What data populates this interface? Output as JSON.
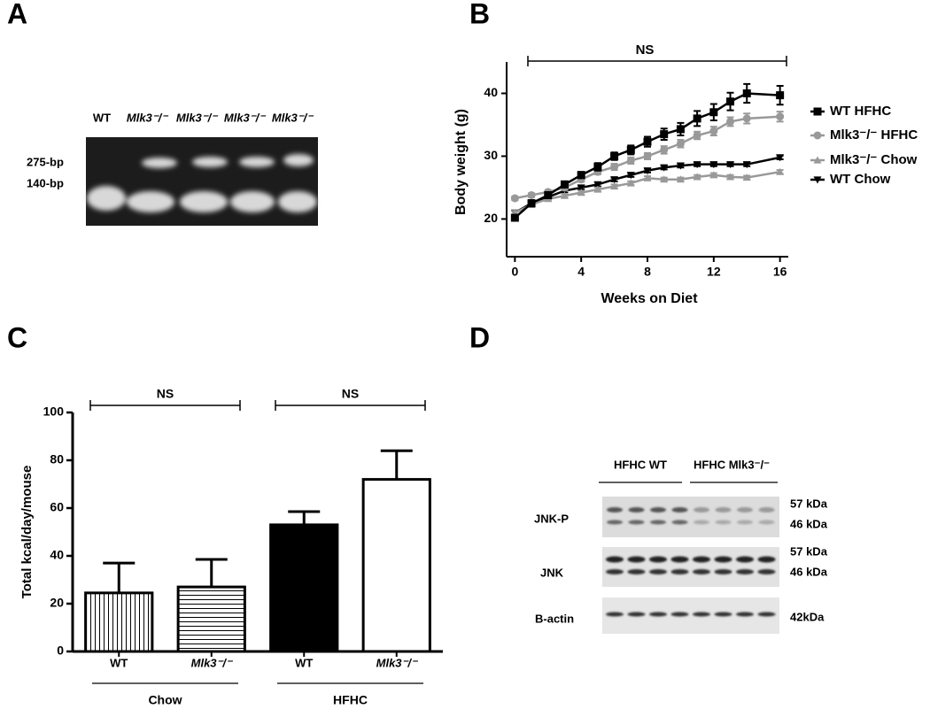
{
  "figure": {
    "panel_labels": [
      "A",
      "B",
      "C",
      "D"
    ],
    "gel": {
      "lanes": [
        "WT",
        "Mlk3⁻/⁻",
        "Mlk3⁻/⁻",
        "Mlk3⁻/⁻",
        "Mlk3⁻/⁻"
      ],
      "markers": [
        "275-bp",
        "140-bp"
      ]
    },
    "blot": {
      "groups": [
        "HFHC WT",
        "HFHC Mlk3⁻/⁻"
      ],
      "rows": [
        "JNK-P",
        "JNK",
        "B-actin"
      ],
      "sizes": [
        "57 kDa",
        "46 kDa",
        "57 kDa",
        "46 kDa",
        "42kDa"
      ]
    }
  },
  "chart_data": [
    {
      "type": "line",
      "xlabel": "Weeks on Diet",
      "ylabel": "Body weight  (g)",
      "annotation": "NS",
      "x": [
        0,
        1,
        2,
        3,
        4,
        5,
        6,
        7,
        8,
        9,
        10,
        11,
        12,
        13,
        14,
        16
      ],
      "xlim": [
        -0.5,
        16.5
      ],
      "xticks": [
        0,
        4,
        8,
        12,
        16
      ],
      "ylim": [
        14,
        45
      ],
      "yticks": [
        20,
        30,
        40
      ],
      "legend": "right",
      "series": [
        {
          "name": "WT HFHC",
          "color": "#000000",
          "marker": "square",
          "values": [
            20.2,
            22.5,
            23.8,
            25.5,
            27,
            28.3,
            30,
            31,
            32.3,
            33.5,
            34.3,
            36,
            37,
            38.7,
            40,
            39.7
          ],
          "errors": [
            0.5,
            0.5,
            0.4,
            0.5,
            0.5,
            0.6,
            0.6,
            0.7,
            0.8,
            0.9,
            1,
            1.2,
            1.3,
            1.4,
            1.5,
            1.5
          ]
        },
        {
          "name": "Mlk3⁻/⁻ HFHC",
          "color": "#999999",
          "marker": "circle",
          "values": [
            23.3,
            23.8,
            24.3,
            25,
            26.3,
            27.5,
            28.3,
            29.3,
            30,
            31,
            32,
            33.3,
            34,
            35.5,
            36,
            36.3
          ],
          "errors": [
            0.3,
            0.3,
            0.3,
            0.4,
            0.4,
            0.4,
            0.5,
            0.5,
            0.5,
            0.6,
            0.6,
            0.6,
            0.7,
            0.7,
            0.8,
            0.8
          ]
        },
        {
          "name": "Mlk3⁻/⁻ Chow",
          "color": "#999999",
          "marker": "triangle",
          "values": [
            21,
            22.3,
            23.2,
            23.7,
            24.2,
            24.7,
            25.2,
            25.7,
            26.5,
            26.3,
            26.3,
            26.7,
            27,
            26.7,
            26.6,
            27.5
          ],
          "errors": [
            0.3,
            0.3,
            0.3,
            0.3,
            0.3,
            0.3,
            0.3,
            0.3,
            0.3,
            0.3,
            0.3,
            0.3,
            0.3,
            0.3,
            0.3,
            0.3
          ]
        },
        {
          "name": "WT Chow",
          "color": "#000000",
          "marker": "triangle-down",
          "values": [
            21,
            22.5,
            23.5,
            24.5,
            25,
            25.5,
            26.3,
            27,
            27.7,
            28.2,
            28.5,
            28.7,
            28.7,
            28.7,
            28.7,
            29.8
          ],
          "errors": [
            0.3,
            0.3,
            0.3,
            0.3,
            0.3,
            0.3,
            0.3,
            0.3,
            0.3,
            0.3,
            0.3,
            0.3,
            0.3,
            0.3,
            0.3,
            0.3
          ]
        }
      ]
    },
    {
      "type": "bar",
      "ylabel": "Total kcal/day/mouse",
      "categories": [
        "WT",
        "Mlk3⁻/⁻",
        "WT",
        "Mlk3⁻/⁻"
      ],
      "groups": [
        "Chow",
        "HFHC"
      ],
      "annotations": [
        "NS",
        "NS"
      ],
      "values": [
        24.5,
        27,
        53,
        72
      ],
      "errors": [
        12.5,
        11.5,
        5.5,
        12
      ],
      "patterns": [
        "vertical",
        "horizontal",
        "solid",
        "open"
      ],
      "color": "#000000",
      "ylim": [
        0,
        100
      ],
      "yticks": [
        0,
        20,
        40,
        60,
        80,
        100
      ]
    }
  ]
}
